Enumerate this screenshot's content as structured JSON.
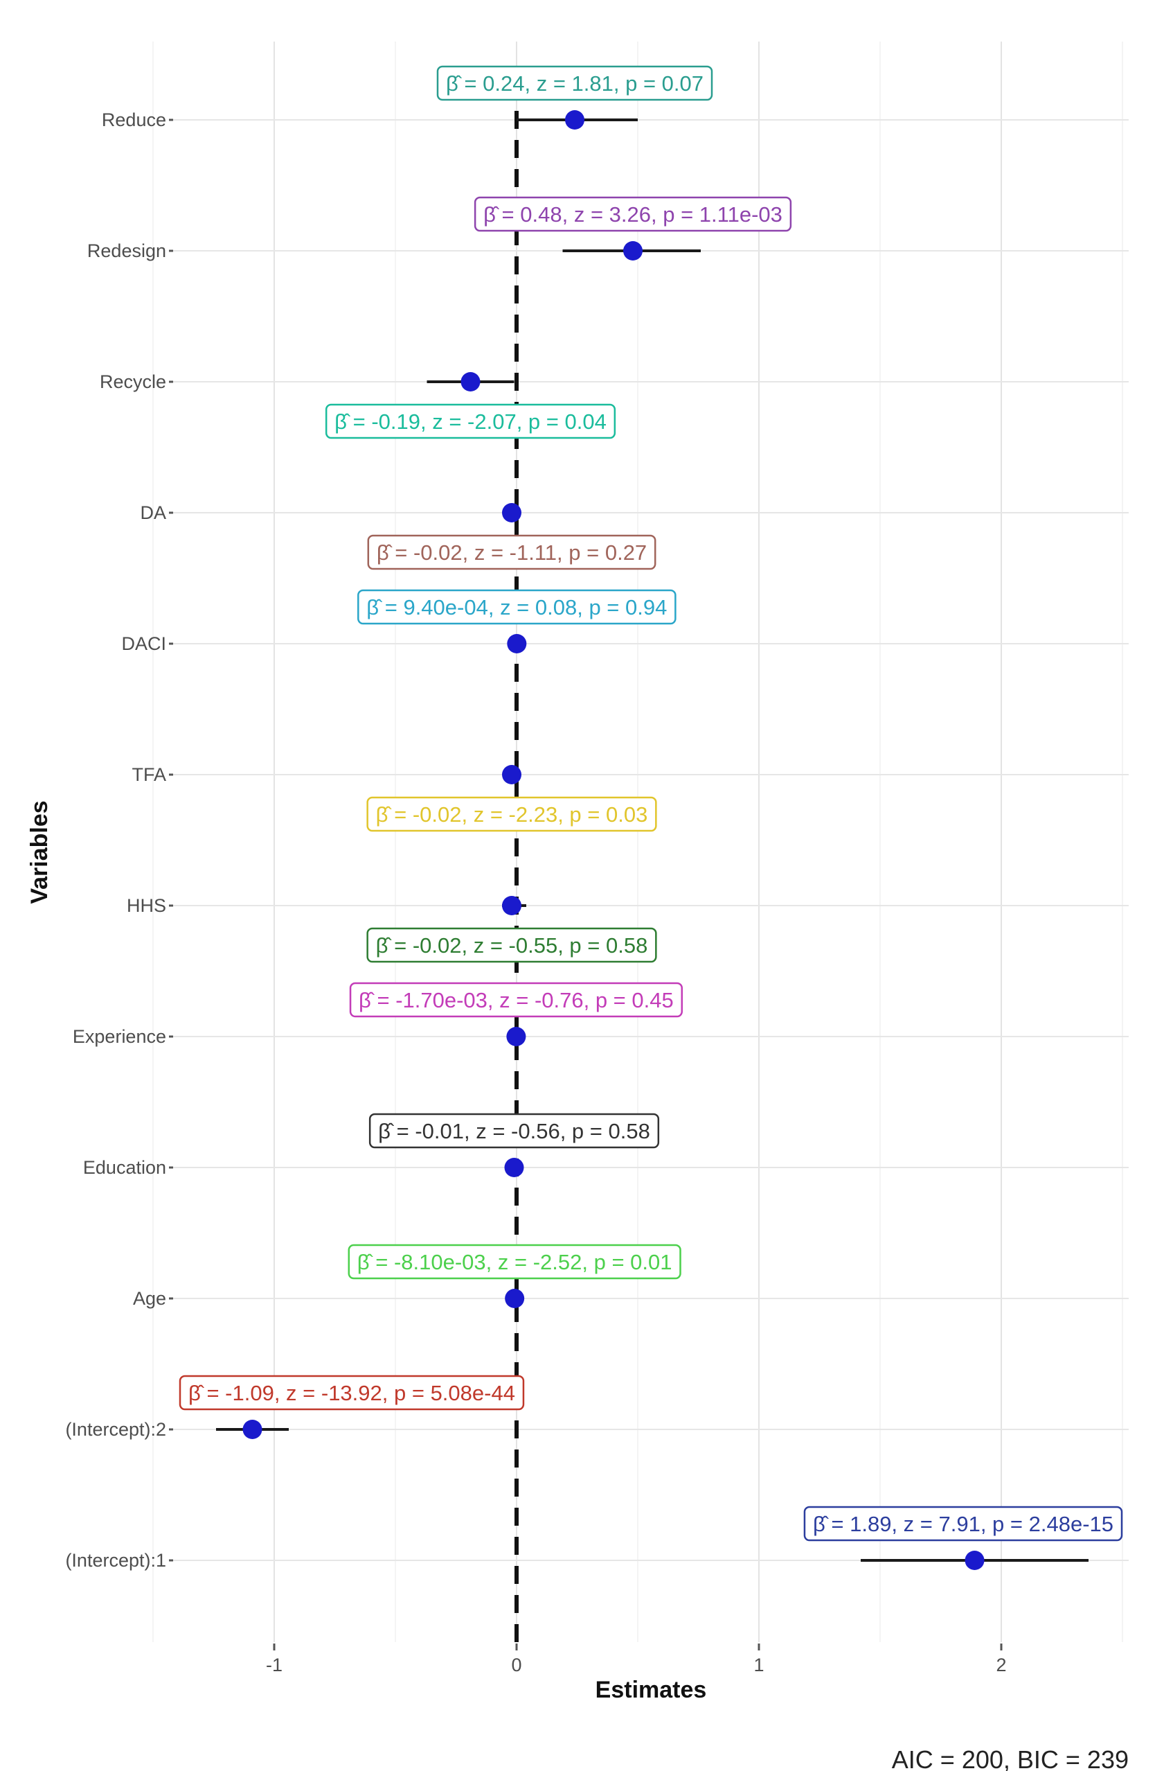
{
  "chart_data": {
    "type": "scatter",
    "subtype": "coefficient-plot",
    "xlabel": "Estimates",
    "ylabel": "Variables",
    "xlim": [
      -1.5,
      2.55
    ],
    "x_ticks": [
      -1,
      0,
      1,
      2
    ],
    "x_tick_labels": [
      "-1",
      "0",
      "1",
      "2"
    ],
    "reference_line": 0,
    "grid": true,
    "footer": "AIC = 200, BIC = 239",
    "points": [
      {
        "variable": "Reduce",
        "estimate": 0.24,
        "ci": [
          0.0,
          0.5
        ],
        "label": "β̂ = 0.24, z = 1.81, p = 0.07",
        "color": "#2a9d8f",
        "label_side": "above"
      },
      {
        "variable": "Redesign",
        "estimate": 0.48,
        "ci": [
          0.19,
          0.76
        ],
        "label": "β̂ = 0.48, z = 3.26, p = 1.11e-03",
        "color": "#8e44ad",
        "label_side": "above"
      },
      {
        "variable": "Recycle",
        "estimate": -0.19,
        "ci": [
          -0.37,
          -0.01
        ],
        "label": "β̂ = -0.19, z = -2.07, p = 0.04",
        "color": "#1abc9c",
        "label_side": "below"
      },
      {
        "variable": "DA",
        "estimate": -0.02,
        "ci": [
          -0.05,
          0.01
        ],
        "label": "β̂ = -0.02, z = -1.11, p = 0.27",
        "color": "#a0645a",
        "label_side": "below"
      },
      {
        "variable": "DACI",
        "estimate": 0.00094,
        "ci": [
          -0.02,
          0.02
        ],
        "label": "β̂ = 9.40e-04, z = 0.08, p = 0.94",
        "color": "#2aa6c9",
        "label_side": "above"
      },
      {
        "variable": "TFA",
        "estimate": -0.02,
        "ci": [
          -0.04,
          0.0
        ],
        "label": "β̂ = -0.02, z = -2.23, p = 0.03",
        "color": "#e1c52c",
        "label_side": "below"
      },
      {
        "variable": "HHS",
        "estimate": -0.02,
        "ci": [
          -0.06,
          0.04
        ],
        "label": "β̂ = -0.02, z = -0.55, p = 0.58",
        "color": "#2e7d32",
        "label_side": "below"
      },
      {
        "variable": "Experience",
        "estimate": -0.0017,
        "ci": [
          -0.006,
          0.003
        ],
        "label": "β̂ = -1.70e-03, z = -0.76, p = 0.45",
        "color": "#c33cb8",
        "label_side": "above"
      },
      {
        "variable": "Education",
        "estimate": -0.01,
        "ci": [
          -0.04,
          0.02
        ],
        "label": "β̂ = -0.01, z = -0.56, p = 0.58",
        "color": "#333333",
        "label_side": "above"
      },
      {
        "variable": "Age",
        "estimate": -0.0081,
        "ci": [
          -0.014,
          -0.002
        ],
        "label": "β̂ = -8.10e-03, z = -2.52, p = 0.01",
        "color": "#4cd04c",
        "label_side": "above"
      },
      {
        "variable": "(Intercept):2",
        "estimate": -1.09,
        "ci": [
          -1.24,
          -0.94
        ],
        "label": "β̂ = -1.09, z = -13.92, p = 5.08e-44",
        "color": "#c0392b",
        "label_side": "above"
      },
      {
        "variable": "(Intercept):1",
        "estimate": 1.89,
        "ci": [
          1.42,
          2.36
        ],
        "label": "β̂ = 1.89, z = 7.91, p = 2.48e-15",
        "color": "#2c3e9e",
        "label_side": "above"
      }
    ]
  }
}
